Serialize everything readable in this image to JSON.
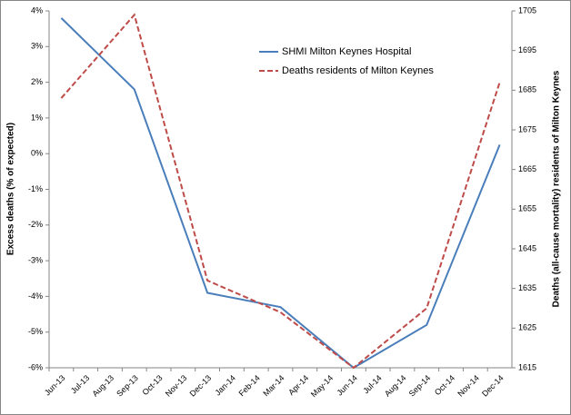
{
  "chart_data": {
    "type": "line",
    "categories": [
      "Jun-13",
      "Jul-13",
      "Aug-13",
      "Sep-13",
      "Oct-13",
      "Nov-13",
      "Dec-13",
      "Jan-14",
      "Feb-14",
      "Mar-14",
      "Apr-14",
      "May-14",
      "Jun-14",
      "Jul-14",
      "Aug-14",
      "Sep-14",
      "Oct-14",
      "Nov-14",
      "Dec-14"
    ],
    "y_label": "Excess deaths (% of expected)",
    "y2_label": "Deaths (all-cause mortality) residents of Milton Keynes",
    "ylim": [
      -6,
      4
    ],
    "yticks": [
      {
        "value": -6,
        "label": "-6%"
      },
      {
        "value": -5,
        "label": "-5%"
      },
      {
        "value": -4,
        "label": "-4%"
      },
      {
        "value": -3,
        "label": "-3%"
      },
      {
        "value": -2,
        "label": "-2%"
      },
      {
        "value": -1,
        "label": "-1%"
      },
      {
        "value": 0,
        "label": "0%"
      },
      {
        "value": 1,
        "label": "1%"
      },
      {
        "value": 2,
        "label": "2%"
      },
      {
        "value": 3,
        "label": "3%"
      },
      {
        "value": 4,
        "label": "4%"
      }
    ],
    "y2lim": [
      1615,
      1705
    ],
    "y2ticks": [
      1615,
      1625,
      1635,
      1645,
      1655,
      1665,
      1675,
      1685,
      1695,
      1705
    ],
    "series": [
      {
        "name": "SHMI Milton Keynes Hospital",
        "color": "#4a7ebb",
        "dashed": false,
        "x": [
          "Jun-13",
          "Sep-13",
          "Dec-13",
          "Mar-14",
          "Jun-14",
          "Sep-14",
          "Dec-14"
        ],
        "values": [
          3.8,
          1.8,
          -3.9,
          -4.3,
          -6.0,
          -4.8,
          0.25
        ]
      },
      {
        "name": "Deaths residents of Milton Keynes",
        "color": "#be4b48",
        "dashed": true,
        "axis": "y2",
        "x": [
          "Jun-13",
          "Sep-13",
          "Dec-13",
          "Mar-14",
          "Jun-14",
          "Sep-14",
          "Dec-14"
        ],
        "values": [
          1683,
          1704,
          1637,
          1629,
          1615,
          1630,
          1687
        ]
      }
    ]
  }
}
